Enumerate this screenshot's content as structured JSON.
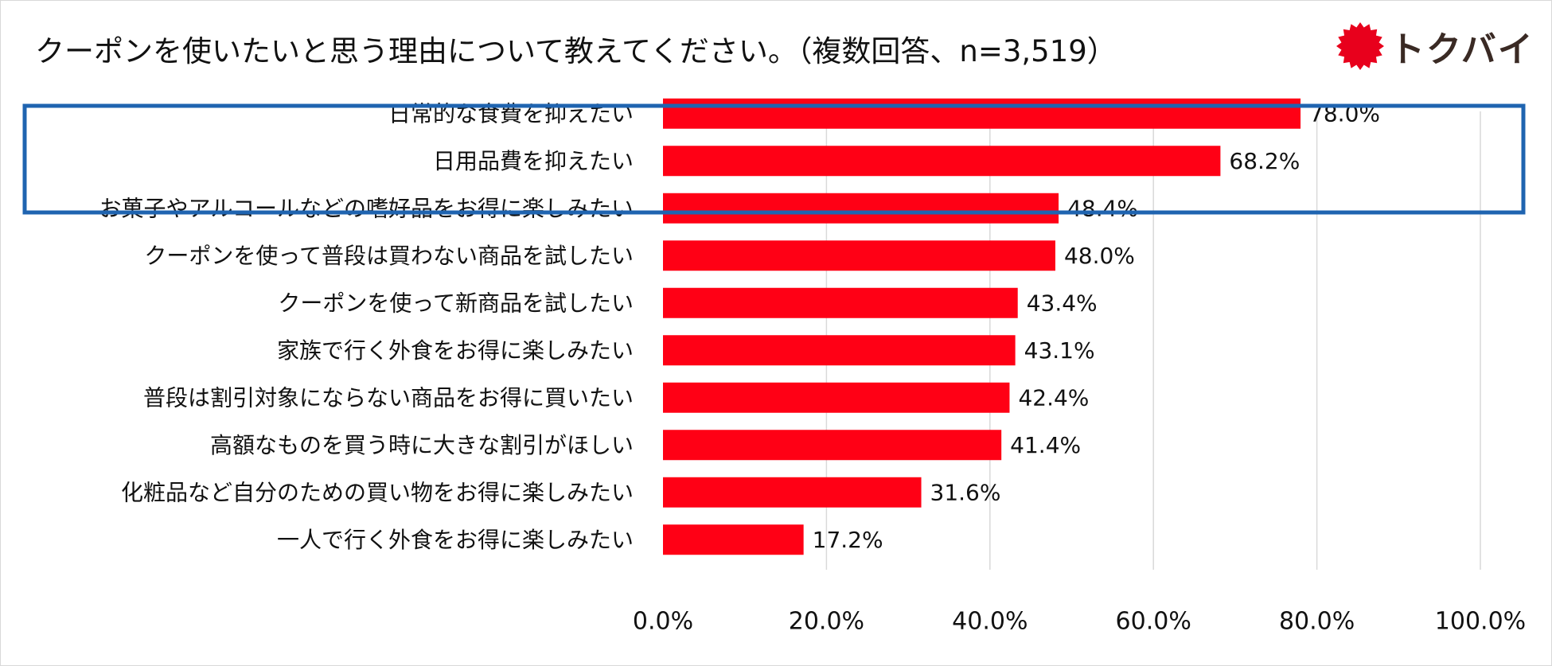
{
  "header": {
    "title": "クーポンを使いたいと思う理由について教えてください。（複数回答、n=3,519）",
    "logo_text": "トクバイ"
  },
  "colors": {
    "bar": "#ff0015",
    "highlight_border": "#1f64b0",
    "gridline": "#d9d9d9",
    "logo_red": "#e8001c"
  },
  "chart_data": {
    "type": "bar",
    "orientation": "horizontal",
    "title": "クーポンを使いたいと思う理由について教えてください。（複数回答、n=3,519）",
    "xlabel": "",
    "ylabel": "",
    "xlim": [
      0,
      100
    ],
    "ticks": [
      0,
      20,
      40,
      60,
      80,
      100
    ],
    "tick_labels": [
      "0.0%",
      "20.0%",
      "40.0%",
      "60.0%",
      "80.0%",
      "100.0%"
    ],
    "grid": true,
    "highlighted_categories": [
      0,
      1
    ],
    "categories": [
      "日常的な食費を抑えたい",
      "日用品費を抑えたい",
      "お菓子やアルコールなどの嗜好品をお得に楽しみたい",
      "クーポンを使って普段は買わない商品を試したい",
      "クーポンを使って新商品を試したい",
      "家族で行く外食をお得に楽しみたい",
      "普段は割引対象にならない商品をお得に買いたい",
      "高額なものを買う時に大きな割引がほしい",
      "化粧品など自分のための買い物をお得に楽しみたい",
      "一人で行く外食をお得に楽しみたい"
    ],
    "values": [
      78.0,
      68.2,
      48.4,
      48.0,
      43.4,
      43.1,
      42.4,
      41.4,
      31.6,
      17.2
    ],
    "value_labels": [
      "78.0%",
      "68.2%",
      "48.4%",
      "48.0%",
      "43.4%",
      "43.1%",
      "42.4%",
      "41.4%",
      "31.6%",
      "17.2%"
    ]
  }
}
